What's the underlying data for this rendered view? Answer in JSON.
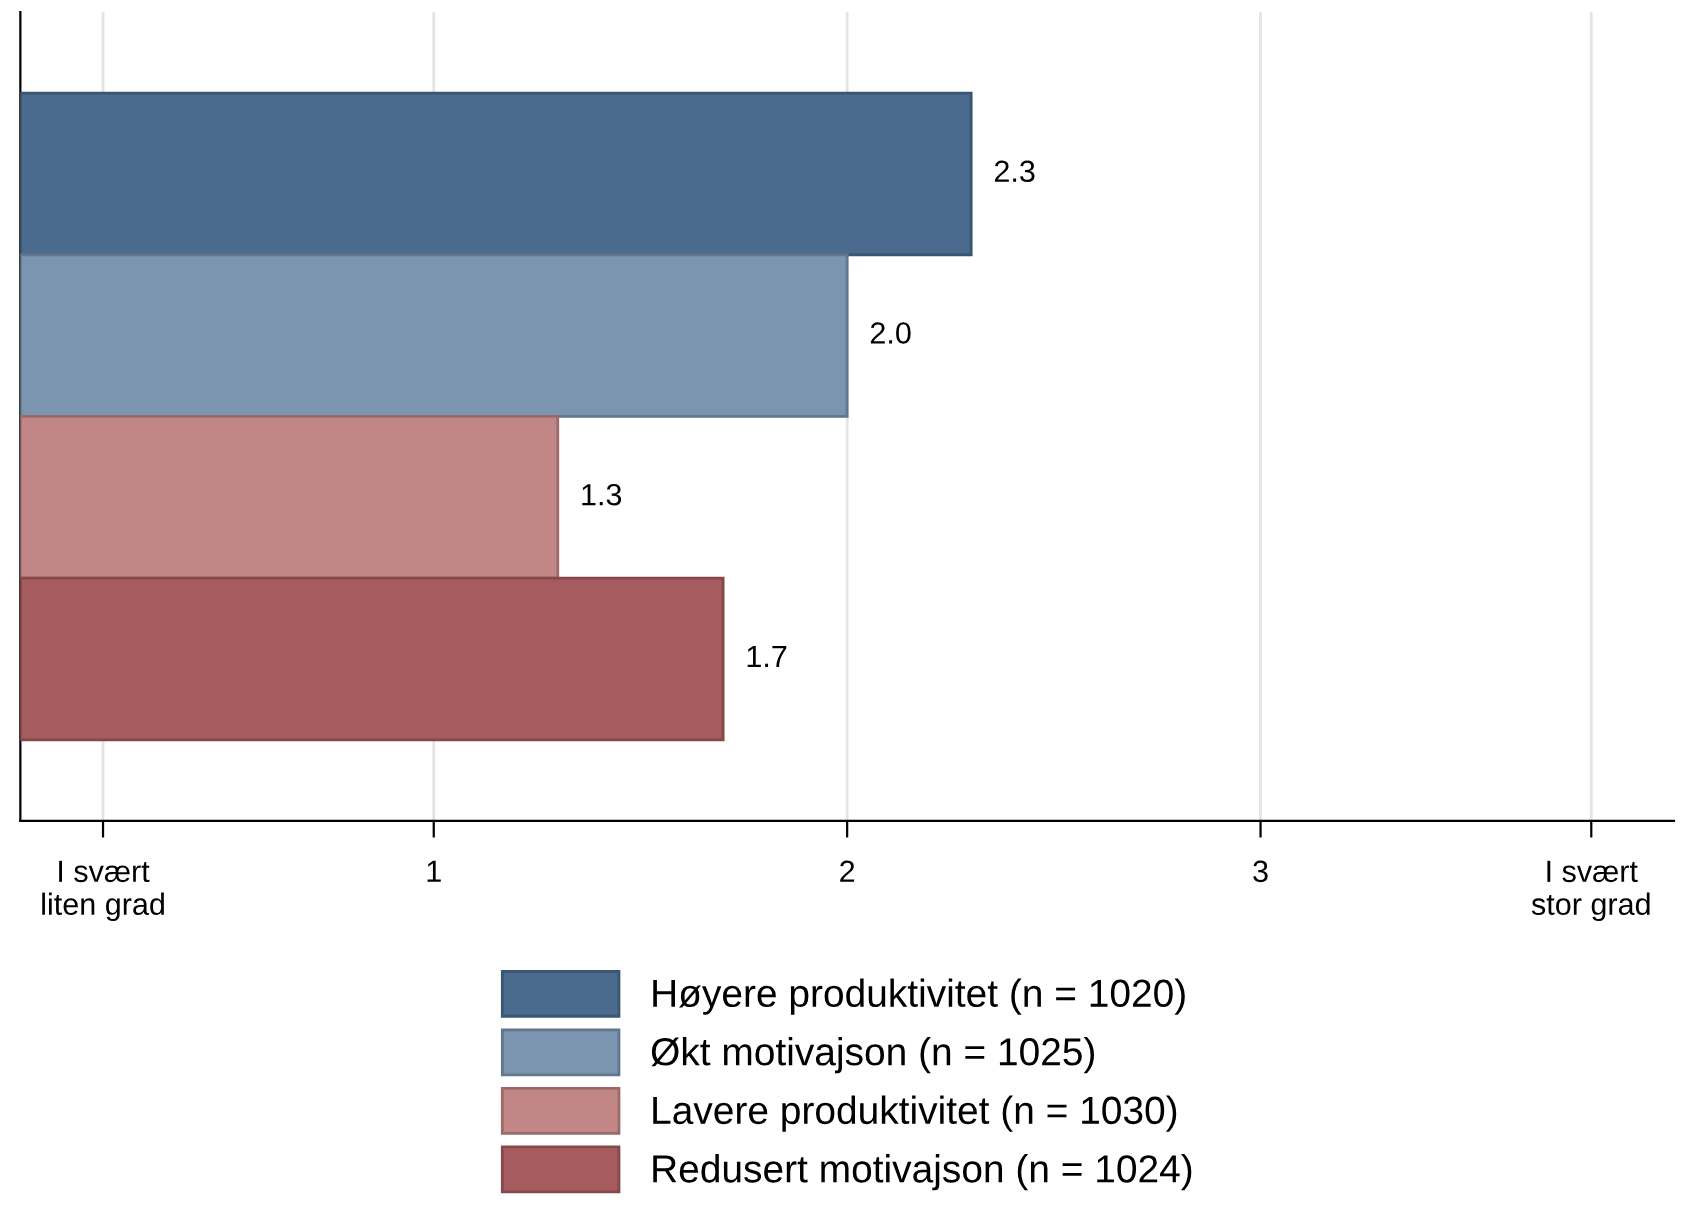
{
  "chart_data": {
    "type": "bar",
    "orientation": "horizontal",
    "categories": [
      null
    ],
    "series": [
      {
        "name": "Høyere produktivitet (n = 1020)",
        "color": "#4a6b8e",
        "values": [
          2.3
        ],
        "value_labels": [
          "2.3"
        ]
      },
      {
        "name": "Økt motivajson (n = 1025)",
        "color": "#7b94af",
        "values": [
          2.0
        ],
        "value_labels": [
          "2.0"
        ]
      },
      {
        "name": "Lavere produktivitet (n = 1030)",
        "color": "#c28686",
        "values": [
          1.3
        ],
        "value_labels": [
          "1.3"
        ]
      },
      {
        "name": "Redusert motivajson (n = 1024)",
        "color": "#a65b5e",
        "values": [
          1.7
        ],
        "value_labels": [
          "1.7"
        ]
      }
    ],
    "xlim": [
      0,
      4
    ],
    "xticks": [
      {
        "value": 0.2,
        "label": "I svært\nliten grad"
      },
      1,
      2,
      3,
      {
        "value": 3.8,
        "label": "I svært\nstor grad"
      }
    ],
    "grid": "x",
    "legend": "bottom"
  }
}
